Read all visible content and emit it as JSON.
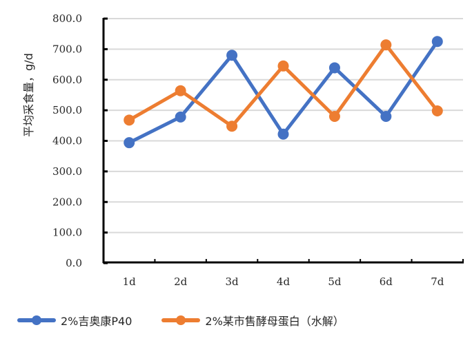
{
  "chart_data": {
    "type": "line",
    "title": "",
    "xlabel": "",
    "ylabel": "平均采食量，g/d",
    "categories": [
      "1d",
      "2d",
      "3d",
      "4d",
      "5d",
      "6d",
      "7d"
    ],
    "ylim": [
      0,
      800
    ],
    "yticks": [
      "0.0",
      "100.0",
      "200.0",
      "300.0",
      "400.0",
      "500.0",
      "600.0",
      "700.0",
      "800.0"
    ],
    "grid": true,
    "legend_position": "bottom",
    "series": [
      {
        "name": "2%吉奥康P40",
        "color": "#4472C4",
        "values": [
          394,
          478,
          680,
          422,
          639,
          480,
          725
        ]
      },
      {
        "name": "2%某市售酵母蛋白（水解）",
        "color": "#ED7D31",
        "values": [
          468,
          564,
          448,
          645,
          480,
          714,
          498
        ]
      }
    ]
  }
}
